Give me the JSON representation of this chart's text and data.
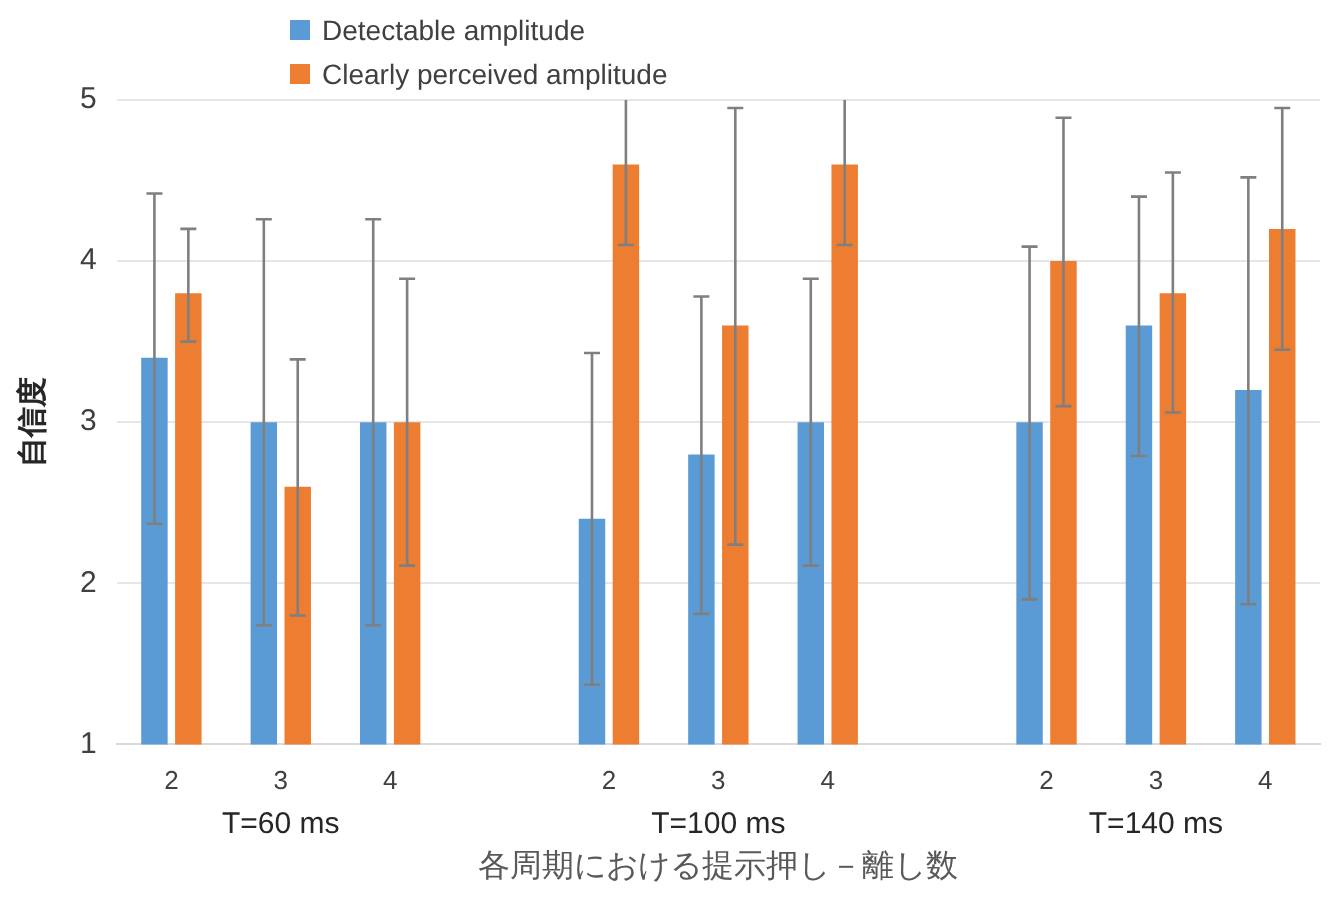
{
  "chart_data": {
    "type": "bar",
    "xlabel": "各周期における提示押し－離し数",
    "ylabel": "自信度",
    "categories": [
      "2",
      "3",
      "4",
      null,
      "2",
      "3",
      "4",
      null,
      "2",
      "3",
      "4"
    ],
    "annotations": [
      "T=60 ms",
      "T=100 ms",
      "T=140 ms"
    ],
    "series": [
      {
        "name": "Detectable amplitude",
        "color": "#5b9bd5",
        "values": [
          3.4,
          3.0,
          3.0,
          null,
          2.4,
          2.8,
          3.0,
          null,
          3.0,
          3.6,
          3.2
        ],
        "errors": [
          [
            2.37,
            4.42
          ],
          [
            1.74,
            4.26
          ],
          [
            1.74,
            4.26
          ],
          null,
          [
            1.37,
            3.43
          ],
          [
            1.81,
            3.78
          ],
          [
            2.11,
            3.89
          ],
          null,
          [
            1.9,
            4.09
          ],
          [
            2.79,
            4.4
          ],
          [
            1.87,
            4.52
          ]
        ]
      },
      {
        "name": "Clearly perceived amplitude",
        "color": "#ed7d31",
        "values": [
          3.8,
          2.6,
          3.0,
          null,
          4.6,
          3.6,
          4.6,
          null,
          4.0,
          3.8,
          4.2
        ],
        "errors": [
          [
            3.5,
            4.2
          ],
          [
            1.8,
            3.39
          ],
          [
            2.11,
            3.89
          ],
          null,
          [
            4.1,
            5
          ],
          [
            2.24,
            4.95
          ],
          [
            4.1,
            5
          ],
          null,
          [
            3.1,
            4.89
          ],
          [
            3.06,
            4.55
          ],
          [
            3.45,
            4.95
          ]
        ]
      }
    ],
    "ylim": [
      1,
      5
    ],
    "yticks": [
      1,
      2,
      3,
      4,
      5
    ],
    "grid": "y",
    "legend": "top left"
  }
}
